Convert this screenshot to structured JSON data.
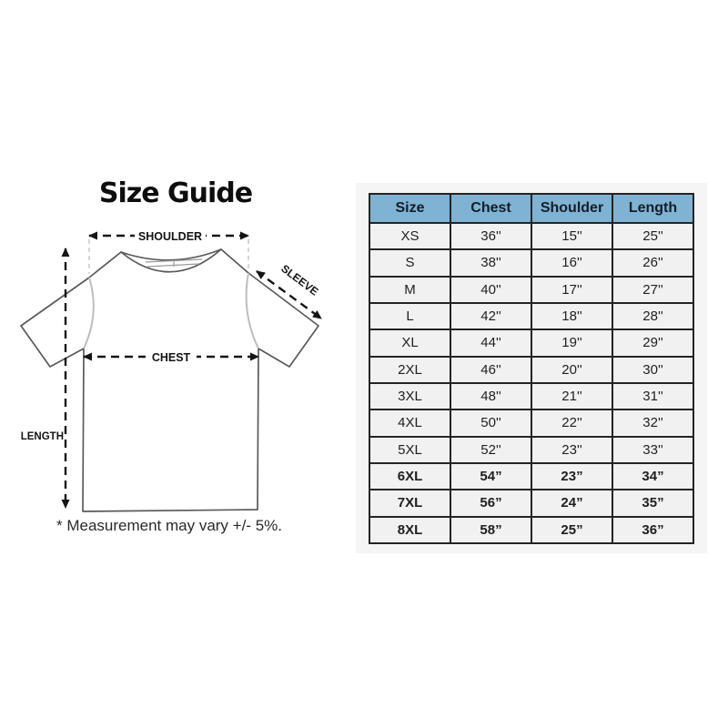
{
  "theme": {
    "header_bg": "#7fb2d3",
    "header_text": "#121d28",
    "border": "#242424",
    "row_bg": "#f1f1f1",
    "text": "#1f1f1f",
    "backdrop": "#f5f5f5",
    "arrow": "#141414"
  },
  "size_guide": {
    "title": "Size Guide",
    "footnote": "* Measurement may vary +/- 5%.",
    "labels": {
      "shoulder": "SHOULDER",
      "sleeve": "SLEEVE",
      "chest": "CHEST",
      "length": "LENGTH"
    }
  },
  "size_table": {
    "columns": [
      "Size",
      "Chest",
      "Shoulder",
      "Length"
    ],
    "rows": [
      {
        "size": "XS",
        "chest": "36''",
        "shoulder": "15''",
        "length": "25''",
        "bold": false
      },
      {
        "size": "S",
        "chest": "38''",
        "shoulder": "16''",
        "length": "26''",
        "bold": false
      },
      {
        "size": "M",
        "chest": "40''",
        "shoulder": "17''",
        "length": "27''",
        "bold": false
      },
      {
        "size": "L",
        "chest": "42''",
        "shoulder": "18''",
        "length": "28''",
        "bold": false
      },
      {
        "size": "XL",
        "chest": "44''",
        "shoulder": "19''",
        "length": "29''",
        "bold": false
      },
      {
        "size": "2XL",
        "chest": "46''",
        "shoulder": "20''",
        "length": "30''",
        "bold": false
      },
      {
        "size": "3XL",
        "chest": "48''",
        "shoulder": "21''",
        "length": "31''",
        "bold": false
      },
      {
        "size": "4XL",
        "chest": "50''",
        "shoulder": "22''",
        "length": "32''",
        "bold": false
      },
      {
        "size": "5XL",
        "chest": "52''",
        "shoulder": "23''",
        "length": "33''",
        "bold": false
      },
      {
        "size": "6XL",
        "chest": "54”",
        "shoulder": "23”",
        "length": "34”",
        "bold": true
      },
      {
        "size": "7XL",
        "chest": "56”",
        "shoulder": "24”",
        "length": "35”",
        "bold": true
      },
      {
        "size": "8XL",
        "chest": "58”",
        "shoulder": "25”",
        "length": "36”",
        "bold": true
      }
    ]
  }
}
